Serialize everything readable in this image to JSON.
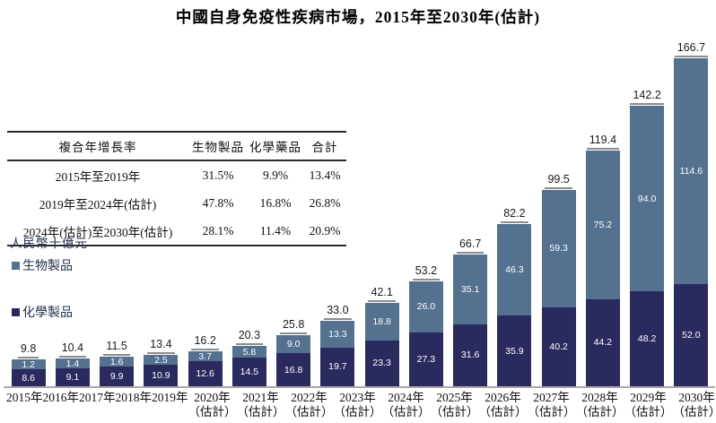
{
  "title": "中國自身免疫性疾病市場，2015年至2030年(估計)",
  "table": {
    "headers": [
      "複合年增長率",
      "生物製品",
      "化學藥品",
      "合計"
    ],
    "rows": [
      [
        "2015年至2019年",
        "31.5%",
        "9.9%",
        "13.4%"
      ],
      [
        "2019年至2024年(估計)",
        "47.8%",
        "16.8%",
        "26.8%"
      ],
      [
        "2024年(估計)至2030年(估計)",
        "28.1%",
        "11.4%",
        "20.9%"
      ]
    ]
  },
  "unit_label": "人民幣十億元",
  "legend": [
    {
      "label": "生物製品",
      "color": "#54718F"
    },
    {
      "label": "化學製品",
      "color": "#2B2A5E"
    }
  ],
  "chart_data": {
    "type": "bar",
    "stacked": true,
    "stack_order": "top-to-bottom",
    "title": "中國自身免疫性疾病市場，2015年至2030年(估計)",
    "ylabel": "人民幣十億元",
    "ylim": [
      0,
      175
    ],
    "grid": false,
    "legend_position": "left",
    "value_labels": "white labels inside segments; underlined totals above bars",
    "categories": [
      "2015年",
      "2016年",
      "2017年",
      "2018年",
      "2019年",
      "2020年",
      "2021年",
      "2022年",
      "2023年",
      "2024年",
      "2025年",
      "2026年",
      "2027年",
      "2028年",
      "2029年",
      "2030年"
    ],
    "category_notes": [
      "",
      "",
      "",
      "",
      "",
      "（估計）",
      "（估計）",
      "（估計）",
      "（估計）",
      "（估計）",
      "（估計）",
      "（估計）",
      "（估計）",
      "（估計）",
      "（估計）",
      "（估計）"
    ],
    "series": [
      {
        "name": "生物製品",
        "color": "#54718F",
        "values": [
          1.2,
          1.4,
          1.6,
          2.5,
          3.7,
          5.8,
          9.0,
          13.3,
          18.8,
          26.0,
          35.1,
          46.3,
          59.3,
          75.2,
          94.0,
          114.6
        ]
      },
      {
        "name": "化學製品",
        "color": "#2B2A5E",
        "values": [
          8.6,
          9.1,
          9.9,
          10.9,
          12.6,
          14.5,
          16.8,
          19.7,
          23.3,
          27.3,
          31.6,
          35.9,
          40.2,
          44.2,
          48.2,
          52.0
        ]
      }
    ],
    "totals": [
      9.8,
      10.4,
      11.5,
      13.4,
      16.2,
      20.3,
      25.8,
      33.0,
      42.1,
      53.2,
      66.7,
      82.2,
      99.5,
      119.4,
      142.2,
      166.7
    ]
  }
}
